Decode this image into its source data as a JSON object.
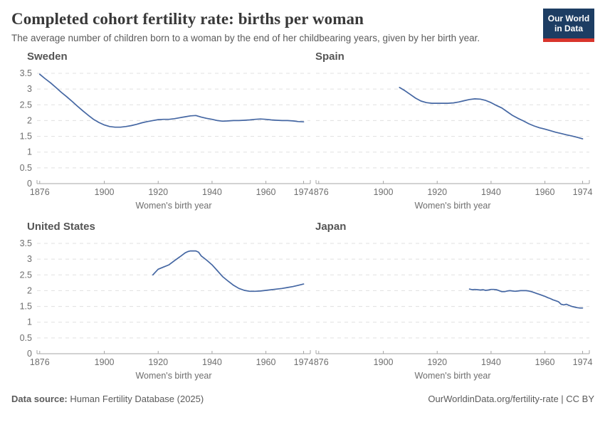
{
  "header": {
    "title": "Completed cohort fertility rate: births per woman",
    "subtitle": "The average number of children born to a woman by the end of her childbearing years, given by her birth year.",
    "logo_line1": "Our World",
    "logo_line2": "in Data",
    "logo_bg_color": "#1d3d63",
    "logo_accent_color": "#d8342c"
  },
  "chart_data": {
    "type": "line",
    "title": "Completed cohort fertility rate: births per woman",
    "xlabel": "Women's birth year",
    "ylabel": "",
    "x_range": [
      1875,
      1976.5
    ],
    "ylim": [
      0,
      3.5
    ],
    "x_ticks": [
      1876,
      1900,
      1920,
      1940,
      1960,
      1974
    ],
    "y_ticks": [
      0,
      0.5,
      1,
      1.5,
      2,
      2.5,
      3,
      3.5
    ],
    "grid": true,
    "legend_position": "none",
    "line_color": "#4567a3",
    "grid_color": "#e0e0e0",
    "axis_color": "#a5a5a5",
    "tick_label_color": "#6e6e6e",
    "facets": [
      {
        "title": "Sweden",
        "show_y_labels": true,
        "points": [
          [
            1876,
            3.47
          ],
          [
            1878,
            3.33
          ],
          [
            1880,
            3.2
          ],
          [
            1882,
            3.05
          ],
          [
            1884,
            2.9
          ],
          [
            1886,
            2.76
          ],
          [
            1888,
            2.61
          ],
          [
            1890,
            2.46
          ],
          [
            1892,
            2.31
          ],
          [
            1894,
            2.17
          ],
          [
            1896,
            2.04
          ],
          [
            1898,
            1.94
          ],
          [
            1900,
            1.86
          ],
          [
            1902,
            1.81
          ],
          [
            1904,
            1.79
          ],
          [
            1906,
            1.79
          ],
          [
            1908,
            1.81
          ],
          [
            1910,
            1.84
          ],
          [
            1912,
            1.88
          ],
          [
            1914,
            1.93
          ],
          [
            1916,
            1.97
          ],
          [
            1918,
            2.0
          ],
          [
            1920,
            2.03
          ],
          [
            1922,
            2.04
          ],
          [
            1924,
            2.04
          ],
          [
            1926,
            2.06
          ],
          [
            1928,
            2.09
          ],
          [
            1930,
            2.12
          ],
          [
            1932,
            2.15
          ],
          [
            1934,
            2.16
          ],
          [
            1936,
            2.11
          ],
          [
            1938,
            2.07
          ],
          [
            1940,
            2.04
          ],
          [
            1942,
            2.0
          ],
          [
            1944,
            1.98
          ],
          [
            1946,
            1.99
          ],
          [
            1948,
            2.0
          ],
          [
            1950,
            2.0
          ],
          [
            1952,
            2.01
          ],
          [
            1954,
            2.02
          ],
          [
            1956,
            2.04
          ],
          [
            1958,
            2.05
          ],
          [
            1960,
            2.04
          ],
          [
            1962,
            2.02
          ],
          [
            1964,
            2.01
          ],
          [
            1966,
            2.0
          ],
          [
            1968,
            2.0
          ],
          [
            1970,
            1.99
          ],
          [
            1972,
            1.97
          ],
          [
            1974,
            1.96
          ]
        ]
      },
      {
        "title": "Spain",
        "show_y_labels": false,
        "points": [
          [
            1906,
            3.05
          ],
          [
            1908,
            2.95
          ],
          [
            1910,
            2.83
          ],
          [
            1912,
            2.71
          ],
          [
            1914,
            2.62
          ],
          [
            1916,
            2.57
          ],
          [
            1918,
            2.55
          ],
          [
            1920,
            2.55
          ],
          [
            1922,
            2.55
          ],
          [
            1924,
            2.55
          ],
          [
            1926,
            2.56
          ],
          [
            1928,
            2.59
          ],
          [
            1930,
            2.63
          ],
          [
            1932,
            2.67
          ],
          [
            1934,
            2.69
          ],
          [
            1936,
            2.68
          ],
          [
            1938,
            2.64
          ],
          [
            1940,
            2.57
          ],
          [
            1942,
            2.48
          ],
          [
            1944,
            2.4
          ],
          [
            1946,
            2.28
          ],
          [
            1948,
            2.16
          ],
          [
            1950,
            2.07
          ],
          [
            1952,
            1.99
          ],
          [
            1954,
            1.9
          ],
          [
            1956,
            1.83
          ],
          [
            1958,
            1.77
          ],
          [
            1960,
            1.73
          ],
          [
            1962,
            1.68
          ],
          [
            1964,
            1.63
          ],
          [
            1966,
            1.59
          ],
          [
            1968,
            1.55
          ],
          [
            1970,
            1.51
          ],
          [
            1972,
            1.47
          ],
          [
            1974,
            1.42
          ]
        ]
      },
      {
        "title": "United States",
        "show_y_labels": true,
        "points": [
          [
            1918,
            2.5
          ],
          [
            1920,
            2.68
          ],
          [
            1922,
            2.75
          ],
          [
            1924,
            2.82
          ],
          [
            1926,
            2.95
          ],
          [
            1928,
            3.07
          ],
          [
            1930,
            3.2
          ],
          [
            1931,
            3.24
          ],
          [
            1932,
            3.26
          ],
          [
            1934,
            3.26
          ],
          [
            1935,
            3.22
          ],
          [
            1936,
            3.1
          ],
          [
            1938,
            2.97
          ],
          [
            1940,
            2.82
          ],
          [
            1942,
            2.63
          ],
          [
            1944,
            2.44
          ],
          [
            1946,
            2.3
          ],
          [
            1948,
            2.17
          ],
          [
            1950,
            2.07
          ],
          [
            1952,
            2.01
          ],
          [
            1954,
            1.98
          ],
          [
            1956,
            1.98
          ],
          [
            1958,
            1.99
          ],
          [
            1960,
            2.01
          ],
          [
            1962,
            2.03
          ],
          [
            1964,
            2.05
          ],
          [
            1966,
            2.07
          ],
          [
            1968,
            2.1
          ],
          [
            1970,
            2.13
          ],
          [
            1972,
            2.17
          ],
          [
            1974,
            2.21
          ]
        ]
      },
      {
        "title": "Japan",
        "show_y_labels": false,
        "points": [
          [
            1932,
            2.05
          ],
          [
            1933,
            2.03
          ],
          [
            1934,
            2.04
          ],
          [
            1935,
            2.03
          ],
          [
            1936,
            2.02
          ],
          [
            1937,
            2.03
          ],
          [
            1938,
            2.01
          ],
          [
            1939,
            2.02
          ],
          [
            1940,
            2.04
          ],
          [
            1941,
            2.04
          ],
          [
            1942,
            2.03
          ],
          [
            1943,
            2.0
          ],
          [
            1944,
            1.97
          ],
          [
            1945,
            1.97
          ],
          [
            1946,
            1.99
          ],
          [
            1947,
            2.0
          ],
          [
            1948,
            1.99
          ],
          [
            1949,
            1.98
          ],
          [
            1950,
            1.99
          ],
          [
            1951,
            2.0
          ],
          [
            1952,
            2.0
          ],
          [
            1953,
            2.0
          ],
          [
            1954,
            1.99
          ],
          [
            1955,
            1.97
          ],
          [
            1956,
            1.94
          ],
          [
            1957,
            1.91
          ],
          [
            1958,
            1.88
          ],
          [
            1959,
            1.85
          ],
          [
            1960,
            1.82
          ],
          [
            1961,
            1.78
          ],
          [
            1962,
            1.75
          ],
          [
            1963,
            1.71
          ],
          [
            1964,
            1.68
          ],
          [
            1965,
            1.65
          ],
          [
            1966,
            1.57
          ],
          [
            1967,
            1.55
          ],
          [
            1968,
            1.57
          ],
          [
            1969,
            1.53
          ],
          [
            1970,
            1.5
          ],
          [
            1971,
            1.48
          ],
          [
            1972,
            1.46
          ],
          [
            1973,
            1.45
          ],
          [
            1974,
            1.45
          ]
        ]
      }
    ]
  },
  "footer": {
    "source_label": "Data source:",
    "source_value": " Human Fertility Database (2025)",
    "attribution": "OurWorldinData.org/fertility-rate | CC BY"
  }
}
